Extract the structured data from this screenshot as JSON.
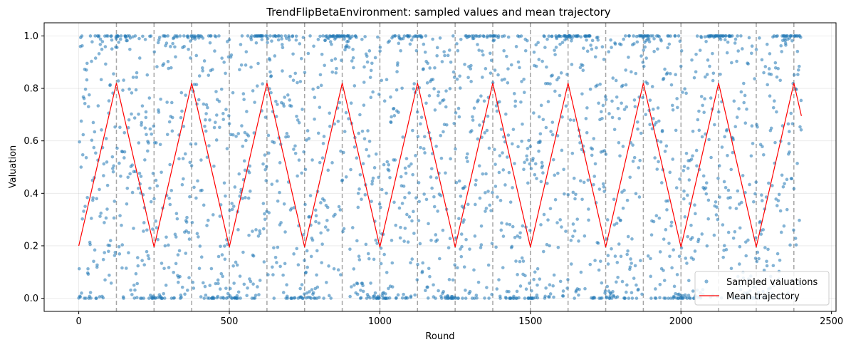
{
  "chart_data": {
    "type": "scatter",
    "title": "TrendFlipBetaEnvironment: sampled values and mean trajectory",
    "xlabel": "Round",
    "ylabel": "Valuation",
    "xlim": [
      -115,
      2515
    ],
    "ylim": [
      -0.05,
      1.05
    ],
    "x_ticks": [
      0,
      500,
      1000,
      1500,
      2000,
      2500
    ],
    "y_ticks": [
      0.0,
      0.2,
      0.4,
      0.6,
      0.8,
      1.0
    ],
    "grid": true,
    "legend_position": "bottom-right",
    "vertical_markers": [
      125,
      250,
      375,
      500,
      625,
      750,
      875,
      1000,
      1125,
      1250,
      1375,
      1500,
      1625,
      1750,
      1875,
      2000,
      2125,
      2250,
      2375
    ],
    "series": [
      {
        "name": "Sampled valuations",
        "kind": "scatter",
        "color": "#1f77b4",
        "n_points": 2400,
        "x_range": [
          0,
          2400
        ],
        "y_range": [
          0,
          1
        ],
        "distribution": "beta draws around the mean trajectory; dense clusters near 0 in low-mean phases and near 1 in high-mean phases"
      },
      {
        "name": "Mean trajectory",
        "kind": "line",
        "color": "#ff0000",
        "points": [
          [
            0,
            0.2
          ],
          [
            125,
            0.82
          ],
          [
            250,
            0.195
          ],
          [
            375,
            0.82
          ],
          [
            500,
            0.195
          ],
          [
            625,
            0.82
          ],
          [
            750,
            0.195
          ],
          [
            875,
            0.82
          ],
          [
            1000,
            0.195
          ],
          [
            1125,
            0.82
          ],
          [
            1250,
            0.195
          ],
          [
            1375,
            0.82
          ],
          [
            1500,
            0.195
          ],
          [
            1625,
            0.82
          ],
          [
            1750,
            0.195
          ],
          [
            1875,
            0.82
          ],
          [
            2000,
            0.195
          ],
          [
            2125,
            0.82
          ],
          [
            2250,
            0.195
          ],
          [
            2375,
            0.82
          ],
          [
            2400,
            0.695
          ]
        ]
      }
    ]
  }
}
